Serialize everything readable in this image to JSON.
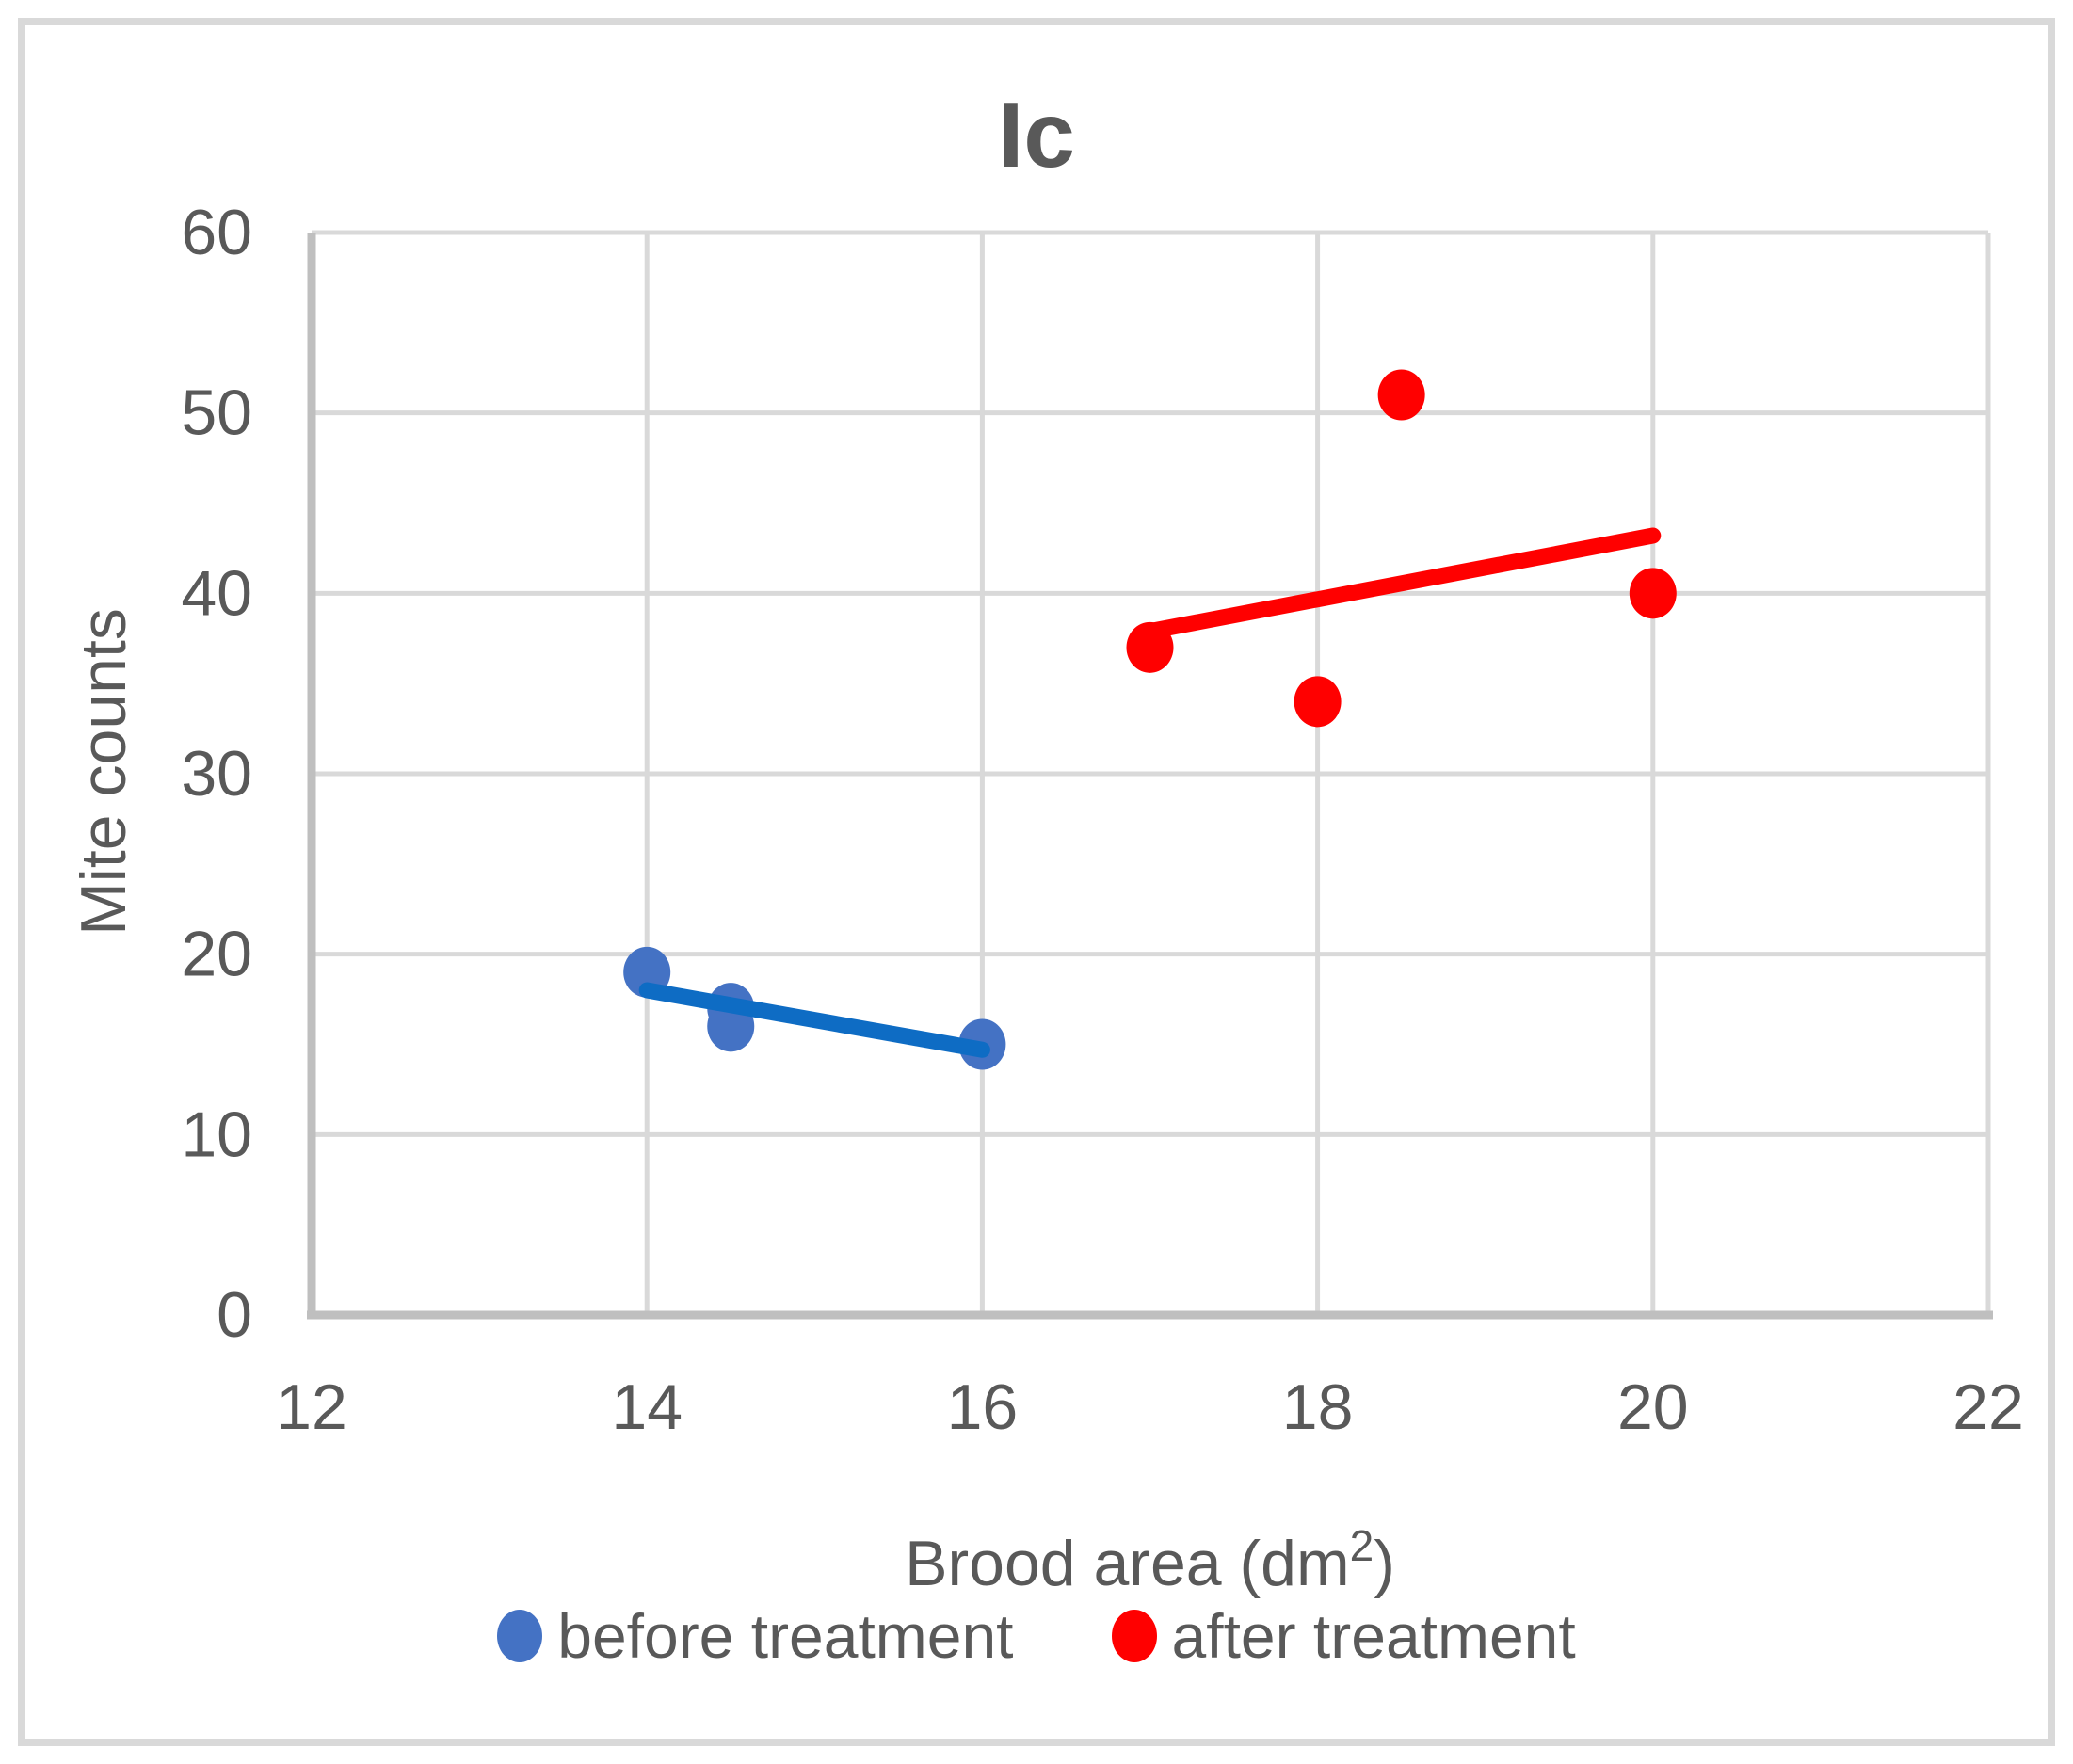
{
  "chart_data": {
    "type": "scatter",
    "title": "Ic",
    "xlabel": "Brood area (dm²)",
    "ylabel": "Mite counts",
    "xlim": [
      12,
      22
    ],
    "ylim": [
      0,
      60
    ],
    "x_ticks": [
      12,
      14,
      16,
      18,
      20,
      22
    ],
    "y_ticks": [
      0,
      10,
      20,
      30,
      40,
      50,
      60
    ],
    "grid": true,
    "legend_position": "bottom",
    "series": [
      {
        "name": "before treatment",
        "marker_color": "#4472C4",
        "line_color": "#0E6CC4",
        "points": [
          [
            14,
            19
          ],
          [
            14.5,
            17
          ],
          [
            14.5,
            16
          ],
          [
            16,
            15
          ]
        ],
        "trendline": {
          "x1": 14,
          "y1": 18.0,
          "x2": 16,
          "y2": 14.7
        }
      },
      {
        "name": "after treatment",
        "marker_color": "#FF0000",
        "line_color": "#FF0000",
        "points": [
          [
            17,
            37
          ],
          [
            18,
            34
          ],
          [
            18.5,
            51
          ],
          [
            20,
            40
          ]
        ],
        "trendline": {
          "x1": 17,
          "y1": 37.9,
          "x2": 20,
          "y2": 43.2
        }
      }
    ]
  },
  "x_axis_title": {
    "prefix": "Brood area (dm",
    "superscript": "2",
    "suffix": ")"
  },
  "colors": {
    "background": "#FFFFFF",
    "text": "#595959",
    "gridline": "#D9D9D9",
    "axis_line": "#BFBFBF",
    "border": "#D9D9D9"
  }
}
